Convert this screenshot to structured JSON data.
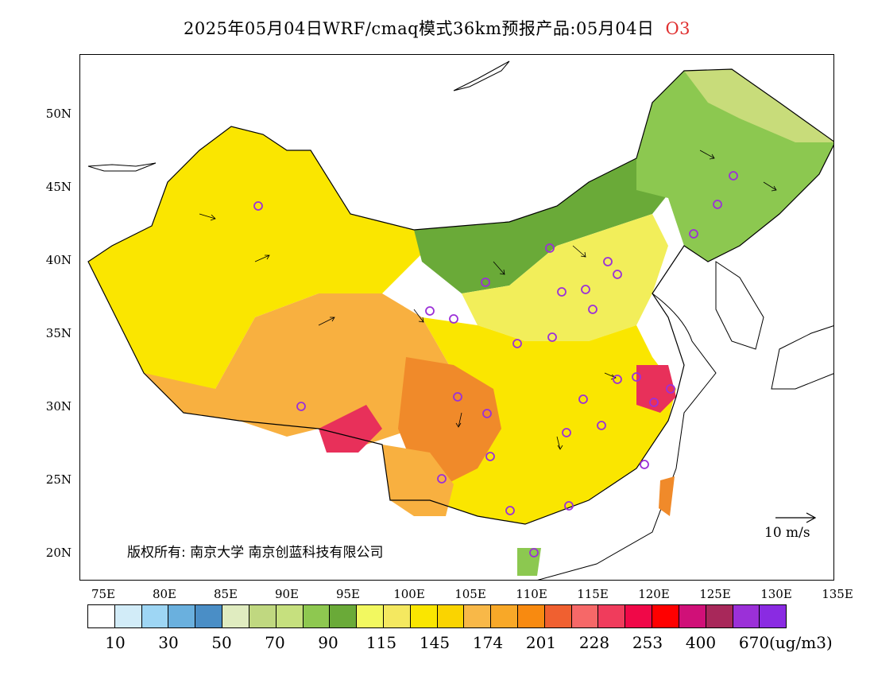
{
  "title": {
    "main": "2025年05月04日WRF/cmaq模式36km预报产品:05月04日",
    "species": "O3"
  },
  "map": {
    "lat_ticks": [
      "50N",
      "45N",
      "40N",
      "35N",
      "30N",
      "25N",
      "20N"
    ],
    "lon_ticks": [
      "75E",
      "80E",
      "85E",
      "90E",
      "95E",
      "100E",
      "105E",
      "110E",
      "115E",
      "120E",
      "125E",
      "130E",
      "135E"
    ],
    "copyright": "版权所有: 南京大学  南京创蓝科技有限公司",
    "wind_reference": "10  m/s",
    "colors": {
      "very_high": "#e8305a",
      "high": "#f08a2a",
      "mid_high": "#f8b040",
      "mid": "#fae600",
      "low_mid": "#f2ee5a",
      "low": "#c8dc7a",
      "lower": "#8cc850",
      "lowest": "#6aaa38",
      "site_marker": "#9b30d8"
    }
  },
  "legend": {
    "colors": [
      "#ffffff",
      "#d2ecf8",
      "#9ed6f4",
      "#6ab0de",
      "#4a8ec6",
      "#e0ecc0",
      "#c0d880",
      "#c6e07e",
      "#8ec850",
      "#6aaa38",
      "#f2f860",
      "#f4e860",
      "#fae600",
      "#fad400",
      "#f8b848",
      "#f8a828",
      "#f88a10",
      "#f06030",
      "#f66868",
      "#f03c5c",
      "#f00848",
      "#ff0000",
      "#d01078",
      "#a8285a",
      "#9b30d8",
      "#8a2be2"
    ],
    "labels": [
      "10",
      "30",
      "50",
      "70",
      "90",
      "115",
      "145",
      "174",
      "201",
      "228",
      "253",
      "400",
      "670"
    ],
    "unit": "(ug/m3)"
  }
}
